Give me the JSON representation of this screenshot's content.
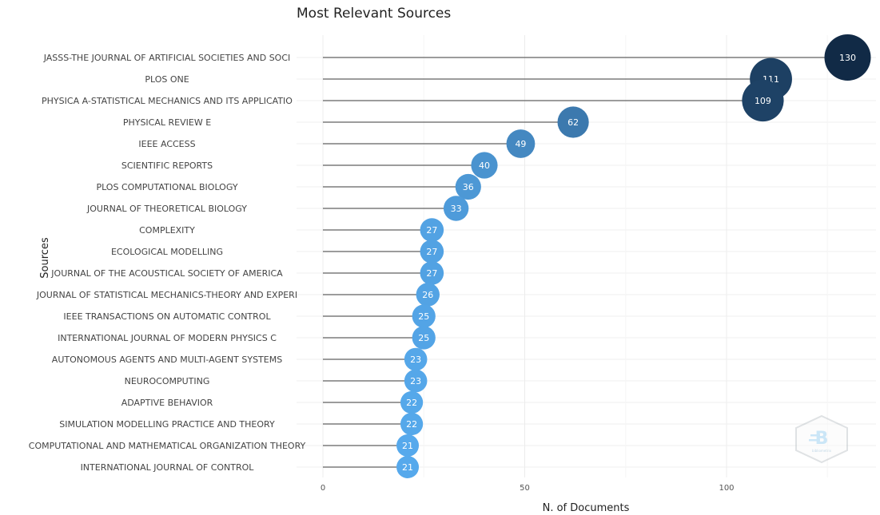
{
  "chart_data": {
    "type": "scatter",
    "title": "Most Relevant Sources",
    "xlabel": "N. of Documents",
    "ylabel": "Sources",
    "xlim": [
      0,
      130
    ],
    "xticks": [
      0,
      50,
      100
    ],
    "grid": true,
    "categories": [
      "JASSS-THE JOURNAL OF ARTIFICIAL SOCIETIES AND SOCI",
      "PLOS ONE",
      "PHYSICA A-STATISTICAL MECHANICS AND ITS APPLICATIO",
      "PHYSICAL REVIEW E",
      "IEEE ACCESS",
      "SCIENTIFIC REPORTS",
      "PLOS COMPUTATIONAL BIOLOGY",
      "JOURNAL OF THEORETICAL BIOLOGY",
      "COMPLEXITY",
      "ECOLOGICAL MODELLING",
      "JOURNAL OF THE ACOUSTICAL SOCIETY OF AMERICA",
      "JOURNAL OF STATISTICAL MECHANICS-THEORY AND EXPERI",
      "IEEE TRANSACTIONS ON AUTOMATIC CONTROL",
      "INTERNATIONAL JOURNAL OF MODERN PHYSICS C",
      "AUTONOMOUS AGENTS AND MULTI-AGENT SYSTEMS",
      "NEUROCOMPUTING",
      "ADAPTIVE BEHAVIOR",
      "SIMULATION MODELLING PRACTICE AND THEORY",
      "COMPUTATIONAL AND MATHEMATICAL ORGANIZATION THEORY",
      "INTERNATIONAL JOURNAL OF CONTROL"
    ],
    "values": [
      130,
      111,
      109,
      62,
      49,
      40,
      36,
      33,
      27,
      27,
      27,
      26,
      25,
      25,
      23,
      23,
      22,
      22,
      21,
      21
    ],
    "color_scale": {
      "low": "#56a9ec",
      "high": "#112a46"
    }
  },
  "logo": {
    "name": "bibliometrix-logo",
    "text": "bibliometrix"
  }
}
